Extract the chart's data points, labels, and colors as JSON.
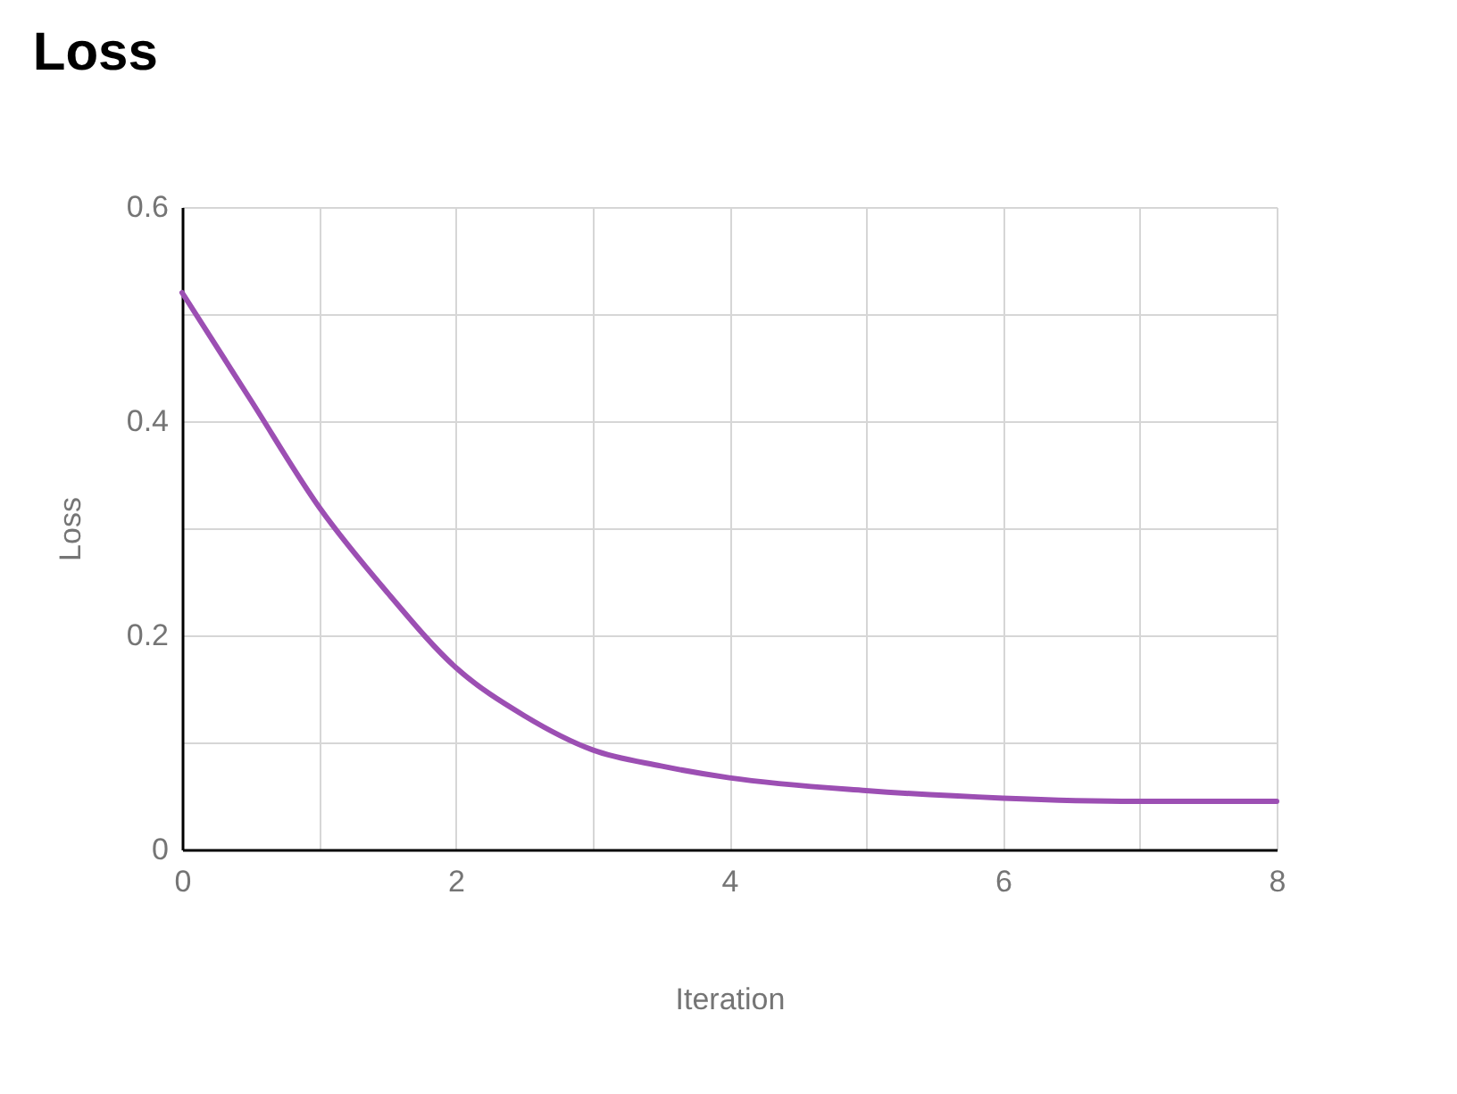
{
  "chart_data": {
    "type": "line",
    "title": "Loss",
    "xlabel": "Iteration",
    "ylabel": "Loss",
    "x": [
      0,
      0.5,
      1,
      1.5,
      2,
      2.5,
      3,
      3.5,
      4,
      5,
      6,
      7,
      8
    ],
    "series": [
      {
        "color": "#9c4fb3",
        "values": [
          0.52,
          0.42,
          0.32,
          0.24,
          0.17,
          0.125,
          0.093,
          0.078,
          0.067,
          0.055,
          0.048,
          0.045,
          0.045
        ]
      }
    ],
    "xlim": [
      0,
      8
    ],
    "ylim": [
      0,
      0.6
    ],
    "xticks": [
      0,
      {
        "value": 1,
        "label": null
      },
      2,
      {
        "value": 3,
        "label": null
      },
      4,
      {
        "value": 5,
        "label": null
      },
      6,
      {
        "value": 7,
        "label": null
      },
      8
    ],
    "yticks": [
      0,
      {
        "value": 0.1,
        "label": null
      },
      0.2,
      {
        "value": 0.3,
        "label": null
      },
      0.4,
      {
        "value": 0.5,
        "label": null
      },
      0.6
    ],
    "grid": true,
    "legend": false,
    "marker": "none",
    "line_style": "solid"
  }
}
